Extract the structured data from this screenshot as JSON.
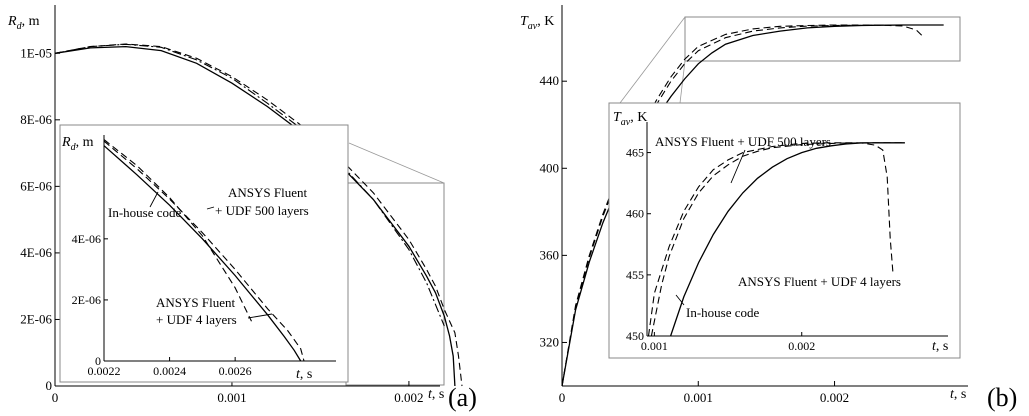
{
  "chart_data": [
    {
      "type": "line",
      "panel_label": "(a)",
      "ylabel_sym": "R",
      "ylabel_sub": "d",
      "ylabel_unit": ", m",
      "xlabel_sym": "t",
      "xlabel_unit": ", s",
      "xlim": [
        0,
        0.0023
      ],
      "ylim": [
        0,
        1.1e-05
      ],
      "x_ticks": [
        {
          "v": 0,
          "label": "0"
        },
        {
          "v": 0.001,
          "label": "0.001"
        },
        {
          "v": 0.002,
          "label": "0.002"
        }
      ],
      "y_ticks": [
        {
          "v": 0,
          "label": "0"
        },
        {
          "v": 2e-06,
          "label": "2E-06"
        },
        {
          "v": 4e-06,
          "label": "4E-06"
        },
        {
          "v": 6e-06,
          "label": "6E-06"
        },
        {
          "v": 8e-06,
          "label": "8E-06"
        },
        {
          "v": 1e-05,
          "label": "1E-05"
        }
      ],
      "series": [
        {
          "key": "inhouse",
          "style": "solid",
          "x": [
            0,
            0.0002,
            0.0004,
            0.0006,
            0.0008,
            0.001,
            0.0012,
            0.0014,
            0.0016,
            0.0018,
            0.002,
            0.0021,
            0.00215,
            0.0022,
            0.00223,
            0.00225,
            0.00226
          ],
          "y": [
            1e-05,
            1.016e-05,
            1.02e-05,
            1.008e-05,
            9.7e-06,
            9.1e-06,
            8.4e-06,
            7.6e-06,
            6.7e-06,
            5.6e-06,
            4.2e-06,
            3.3e-06,
            2.8e-06,
            2.1e-06,
            1.5e-06,
            9e-07,
            0
          ]
        },
        {
          "key": "fluent500",
          "style": "dashed",
          "x": [
            0,
            0.0002,
            0.0004,
            0.0006,
            0.0008,
            0.001,
            0.0012,
            0.0014,
            0.0016,
            0.0018,
            0.002,
            0.0021,
            0.00215,
            0.0022,
            0.00226,
            0.00228,
            0.0023
          ],
          "y": [
            1e-05,
            1.02e-05,
            1.028e-05,
            1.02e-05,
            9.85e-06,
            9.3e-06,
            8.6e-06,
            7.8e-06,
            6.9e-06,
            5.8e-06,
            4.4e-06,
            3.5e-06,
            3e-06,
            2.3e-06,
            1.6e-06,
            9e-07,
            0
          ]
        },
        {
          "key": "fluent4",
          "style": "dashdot",
          "x": [
            0,
            0.0002,
            0.0004,
            0.0006,
            0.0008,
            0.001,
            0.0012,
            0.0014,
            0.0016,
            0.0018,
            0.002,
            0.0021,
            0.0022
          ],
          "y": [
            1e-05,
            1.02e-05,
            1.027e-05,
            1.018e-05,
            9.8e-06,
            9.25e-06,
            8.5e-06,
            7.7e-06,
            6.75e-06,
            5.6e-06,
            4.1e-06,
            3.1e-06,
            1.8e-06
          ]
        }
      ],
      "inset": {
        "ylabel_sym": "R",
        "ylabel_sub": "d",
        "ylabel_unit": ", m",
        "xlabel_sym": "t",
        "xlabel_unit": ", s",
        "xlim": [
          0.0022,
          0.00281
        ],
        "ylim": [
          0,
          7.4e-06
        ],
        "x_ticks": [
          {
            "v": 0.0022,
            "label": "0.0022"
          },
          {
            "v": 0.0024,
            "label": "0.0024"
          },
          {
            "v": 0.0026,
            "label": "0.0026"
          }
        ],
        "y_ticks": [
          {
            "v": 0,
            "label": "0"
          },
          {
            "v": 2e-06,
            "label": "2E-06"
          },
          {
            "v": 4e-06,
            "label": "4E-06"
          }
        ],
        "series": [
          {
            "key": "inhouse",
            "style": "solid",
            "x": [
              0.0022,
              0.0023,
              0.0024,
              0.0025,
              0.0026,
              0.0027,
              0.00275,
              0.00278,
              0.0028
            ],
            "y": [
              7.05e-06,
              6.1e-06,
              5.1e-06,
              4e-06,
              2.8e-06,
              1.5e-06,
              8e-07,
              3.5e-07,
              0
            ]
          },
          {
            "key": "fluent500",
            "style": "dashed",
            "x": [
              0.0022,
              0.0023,
              0.0024,
              0.0025,
              0.0026,
              0.0027,
              0.00276,
              0.0028,
              0.00281
            ],
            "y": [
              7.2e-06,
              6.3e-06,
              5.3e-06,
              4.2e-06,
              3e-06,
              1.7e-06,
              1e-06,
              4e-07,
              0
            ]
          },
          {
            "key": "fluent4",
            "style": "dashed",
            "x": [
              0.0022,
              0.0023,
              0.0024,
              0.0025,
              0.0026,
              0.00265
            ],
            "y": [
              7.25e-06,
              6.4e-06,
              5.35e-06,
              4.1e-06,
              2.4e-06,
              1.3e-06
            ]
          }
        ],
        "annotations": [
          {
            "key": "inhouse",
            "lines": [
              "In-house code"
            ]
          },
          {
            "key": "fluent500",
            "lines": [
              "ANSYS Fluent",
              "+ UDF 500 layers"
            ]
          },
          {
            "key": "fluent4",
            "lines": [
              "ANSYS Fluent",
              "+ UDF 4 layers"
            ]
          }
        ]
      }
    },
    {
      "type": "line",
      "panel_label": "(b)",
      "ylabel_sym": "T",
      "ylabel_sub": "av",
      "ylabel_unit": ", K",
      "xlabel_sym": "t",
      "xlabel_unit": ", s",
      "xlim": [
        0,
        0.00295
      ],
      "ylim": [
        300,
        475
      ],
      "x_ticks": [
        {
          "v": 0,
          "label": "0"
        },
        {
          "v": 0.001,
          "label": "0.001"
        },
        {
          "v": 0.002,
          "label": "0.002"
        }
      ],
      "y_ticks": [
        {
          "v": 320,
          "label": "320"
        },
        {
          "v": 360,
          "label": "360"
        },
        {
          "v": 400,
          "label": "400"
        },
        {
          "v": 440,
          "label": "440"
        }
      ],
      "series": [
        {
          "key": "inhouse",
          "style": "solid",
          "x": [
            0,
            0.0001,
            0.0002,
            0.0003,
            0.0004,
            0.0005,
            0.0006,
            0.0007,
            0.0008,
            0.0009,
            0.001,
            0.0011,
            0.0012,
            0.0014,
            0.0016,
            0.0018,
            0.002,
            0.0022,
            0.0025,
            0.0028
          ],
          "y": [
            300,
            335,
            357,
            375,
            390,
            402,
            414,
            424,
            433,
            441,
            448,
            453,
            457,
            461,
            463,
            464.5,
            465.2,
            465.6,
            465.8,
            465.8
          ]
        },
        {
          "key": "fluent500",
          "style": "dashed",
          "x": [
            0,
            0.0001,
            0.0002,
            0.0003,
            0.0004,
            0.0005,
            0.0006,
            0.0007,
            0.0008,
            0.0009,
            0.001,
            0.0012,
            0.0014,
            0.0016,
            0.0018,
            0.002,
            0.0024,
            0.0028
          ],
          "y": [
            300,
            336,
            359,
            378,
            394,
            407,
            419,
            430,
            440,
            448,
            454,
            460,
            463,
            464.5,
            465.3,
            465.6,
            465.8,
            465.8
          ]
        },
        {
          "key": "fluent4",
          "style": "dashed",
          "x": [
            0,
            0.0001,
            0.0002,
            0.0003,
            0.0004,
            0.0005,
            0.0006,
            0.0007,
            0.0008,
            0.0009,
            0.001,
            0.0012,
            0.0014,
            0.0016,
            0.0018,
            0.002,
            0.0023,
            0.0025,
            0.0026,
            0.00265
          ],
          "y": [
            300,
            337,
            360,
            379,
            395,
            409,
            421,
            432,
            442,
            450,
            456,
            461.5,
            464,
            465.2,
            465.6,
            465.8,
            465.8,
            465.4,
            463.5,
            460.5
          ]
        }
      ],
      "inset": {
        "ylabel_sym": "T",
        "ylabel_sub": "av",
        "ylabel_unit": ", K",
        "xlabel_sym": "t",
        "xlabel_unit": ", s",
        "xlim": [
          0.00095,
          0.00285
        ],
        "ylim": [
          450,
          467.5
        ],
        "x_ticks": [
          {
            "v": 0.001,
            "label": "0.001"
          },
          {
            "v": 0.002,
            "label": "0.002"
          }
        ],
        "y_ticks": [
          {
            "v": 450,
            "label": "450"
          },
          {
            "v": 455,
            "label": "455"
          },
          {
            "v": 460,
            "label": "460"
          },
          {
            "v": 465,
            "label": "465"
          }
        ],
        "series": [
          {
            "key": "inhouse",
            "style": "solid",
            "x": [
              0.00111,
              0.0012,
              0.0013,
              0.0014,
              0.0015,
              0.0016,
              0.0017,
              0.0018,
              0.0019,
              0.002,
              0.0021,
              0.0022,
              0.0023,
              0.0024,
              0.0025,
              0.0026,
              0.0027
            ],
            "y": [
              450,
              453.2,
              456,
              458.3,
              460.2,
              461.7,
              462.9,
              463.8,
              464.5,
              465,
              465.35,
              465.55,
              465.7,
              465.78,
              465.8,
              465.8,
              465.8
            ]
          },
          {
            "key": "fluent500",
            "style": "dashed",
            "x": [
              0.00098,
              0.00105,
              0.0011,
              0.0012,
              0.0013,
              0.0014,
              0.0015,
              0.0016,
              0.0017,
              0.0018,
              0.002,
              0.0022,
              0.0024,
              0.0026,
              0.0027
            ],
            "y": [
              450,
              454.2,
              456.5,
              459.6,
              461.7,
              463.1,
              464,
              464.7,
              465.1,
              465.4,
              465.65,
              465.75,
              465.8,
              465.8,
              465.8
            ]
          },
          {
            "key": "fluent4",
            "style": "dashed",
            "x": [
              0.00096,
              0.001,
              0.0011,
              0.0012,
              0.0013,
              0.0014,
              0.0015,
              0.0016,
              0.0018,
              0.002,
              0.0022,
              0.0024,
              0.0025,
              0.00255,
              0.00258,
              0.0026,
              0.00262
            ],
            "y": [
              450,
              453.5,
              457.3,
              460.2,
              462.2,
              463.6,
              464.4,
              465,
              465.5,
              465.75,
              465.8,
              465.8,
              465.6,
              465.2,
              463,
              458,
              455
            ]
          }
        ],
        "annotations": [
          {
            "key": "fluent500",
            "lines": [
              "ANSYS Fluent + UDF 500 layers"
            ]
          },
          {
            "key": "fluent4",
            "lines": [
              "ANSYS Fluent + UDF 4 layers"
            ]
          },
          {
            "key": "inhouse",
            "lines": [
              "In-house code"
            ]
          }
        ]
      }
    }
  ]
}
